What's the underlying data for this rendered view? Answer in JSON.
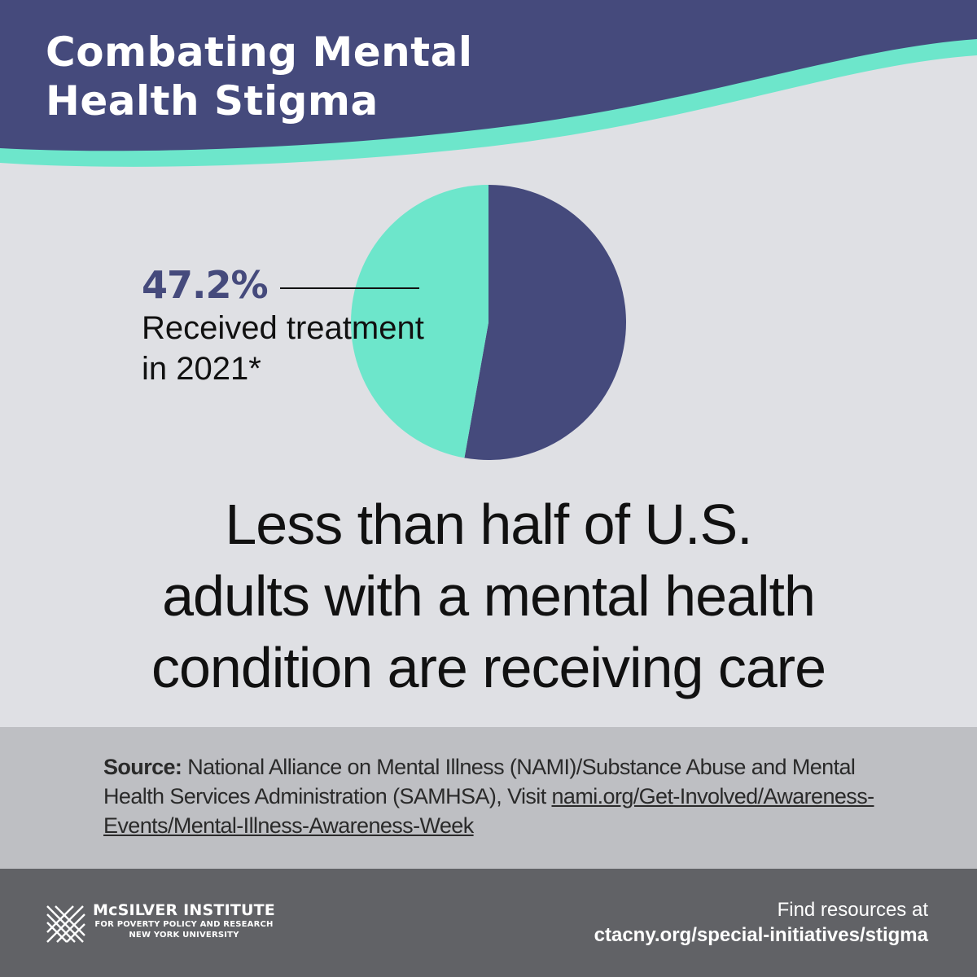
{
  "header": {
    "title_line1": "Combating Mental",
    "title_line2": "Health Stigma"
  },
  "colors": {
    "navy": "#454a7c",
    "teal": "#6de6cb",
    "background": "#dfe0e4",
    "source_band": "#bebfc3",
    "footer": "#616266"
  },
  "chart_data": {
    "type": "pie",
    "slices": [
      {
        "label": "Received treatment in 2021*",
        "value": 47.2,
        "color": "#6de6cb"
      },
      {
        "label": "",
        "value": 52.8,
        "color": "#454a7c"
      }
    ],
    "callout": {
      "value_text": "47.2%",
      "label_line1": "Received treatment",
      "label_line2": "in 2021*"
    }
  },
  "headline": {
    "line1": "Less than half of U.S.",
    "line2": "adults with a mental health",
    "line3": "condition are receiving care"
  },
  "source": {
    "label": "Source:",
    "text": " National Alliance on Mental Illness (NAMI)/Substance Abuse and Mental Health Services Administration (SAMHSA), Visit ",
    "url": "nami.org/Get-Involved/Awareness-Events/Mental-Illness-Awareness-Week"
  },
  "footer": {
    "org_name": "McSILVER INSTITUTE",
    "org_sub1": "FOR POVERTY POLICY AND RESEARCH",
    "org_sub2": "NEW YORK UNIVERSITY",
    "find_line1": "Find resources at",
    "find_line2": "ctacny.org/special-initiatives/stigma"
  }
}
